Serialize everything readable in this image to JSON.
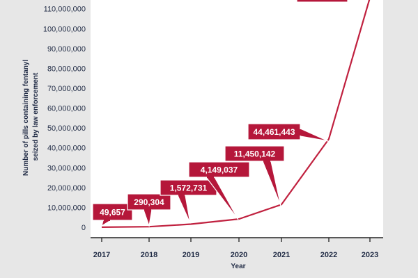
{
  "chart_data": {
    "type": "line",
    "title": "",
    "xlabel": "Year",
    "ylabel": "Number of pills containing fentanyl seized by law enforcement",
    "ylabel_lines": [
      "Number of pills containing fentanyl",
      "seized by law enforcement"
    ],
    "x": [
      "2017",
      "2018",
      "2019",
      "2020",
      "2021",
      "2022",
      "2023"
    ],
    "series": [
      {
        "values": [
          49657,
          290304,
          1572731,
          4149037,
          11450142,
          44461443,
          115562603
        ],
        "labels": [
          "49,657",
          "290,304",
          "1,572,731",
          "4,149,037",
          "11,450,142",
          "44,461,443",
          ""
        ]
      }
    ],
    "yticks": [
      {
        "value": 0,
        "label": "0"
      },
      {
        "value": 10000000,
        "label": "10,000,000"
      },
      {
        "value": 20000000,
        "label": "20,000,000"
      },
      {
        "value": 30000000,
        "label": "30,000,000"
      },
      {
        "value": 40000000,
        "label": "40,000,000"
      },
      {
        "value": 50000000,
        "label": "50,000,000"
      },
      {
        "value": 60000000,
        "label": "60,000,000"
      },
      {
        "value": 70000000,
        "label": "70,000,000"
      },
      {
        "value": 80000000,
        "label": "80,000,000"
      },
      {
        "value": 90000000,
        "label": "90,000,000"
      },
      {
        "value": 100000000,
        "label": "100,000,000"
      },
      {
        "value": 110000000,
        "label": "110,000,000"
      }
    ],
    "ylim": [
      0,
      115000000
    ],
    "grid": false,
    "legend": "none",
    "colors": {
      "background": "#e7e7e7",
      "plot_bg": "#ffffff",
      "line": "#c0213f",
      "callout": "#b5173a",
      "text": "#1f2a44",
      "axis": "#222222"
    }
  }
}
